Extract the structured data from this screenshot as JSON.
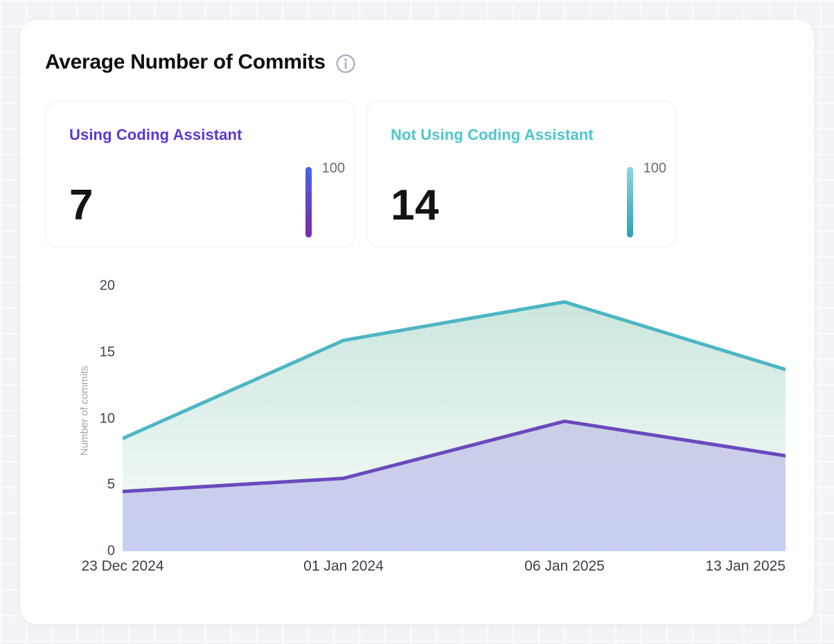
{
  "header": {
    "title": "Average Number of Commits"
  },
  "stats": [
    {
      "label": "Using Coding Assistant",
      "value": "7",
      "scale_max": "100",
      "label_color": "#5b35d5",
      "bar_gradient_top": "#4764e8",
      "bar_gradient_bottom": "#7b2aa4"
    },
    {
      "label": "Not Using Coding Assistant",
      "value": "14",
      "scale_max": "100",
      "label_color": "#4ec5ce",
      "bar_gradient_top": "#8bd7df",
      "bar_gradient_bottom": "#2f9fb2"
    }
  ],
  "chart_data": {
    "type": "area",
    "categories": [
      "23 Dec 2024",
      "01 Jan 2024",
      "06 Jan 2025",
      "13 Jan 2025"
    ],
    "series": [
      {
        "name": "Not Using Coding Assistant",
        "color": "#4db6c4",
        "area_top": "rgba(141,200,178,0.45)",
        "area_bottom": "rgba(141,200,178,0.05)",
        "values": [
          8.5,
          15.9,
          18.8,
          13.7
        ]
      },
      {
        "name": "Using Coding Assistant",
        "color": "#6a49bd",
        "area_top": "rgba(147,130,216,0.30)",
        "area_bottom": "rgba(150,160,235,0.50)",
        "values": [
          4.5,
          5.5,
          9.8,
          7.2
        ]
      }
    ],
    "xlabel": "",
    "ylabel": "Number of commits",
    "yticks": [
      0,
      5,
      10,
      15,
      20
    ],
    "ylim": [
      0,
      20
    ],
    "grid": false,
    "legend": "none"
  }
}
